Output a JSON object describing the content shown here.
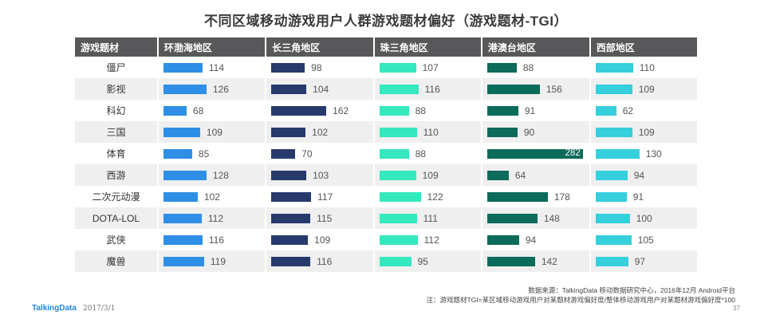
{
  "chart_data": {
    "type": "table",
    "title": "不同区域移动游戏用户人群游戏题材偏好（游戏题材-TGI）",
    "header": [
      "游戏题材",
      "环渤海地区",
      "长三角地区",
      "珠三角地区",
      "港澳台地区",
      "西部地区"
    ],
    "series_colors": [
      "#2f8fe6",
      "#283a6b",
      "#36e8bd",
      "#0c6b5b",
      "#36cfdc"
    ],
    "rows": [
      {
        "category": "僵尸",
        "values": [
          114,
          98,
          107,
          88,
          110
        ]
      },
      {
        "category": "影视",
        "values": [
          126,
          104,
          116,
          156,
          109
        ]
      },
      {
        "category": "科幻",
        "values": [
          68,
          162,
          88,
          91,
          62
        ]
      },
      {
        "category": "三国",
        "values": [
          109,
          102,
          110,
          90,
          109
        ]
      },
      {
        "category": "体育",
        "values": [
          85,
          70,
          88,
          282,
          130
        ]
      },
      {
        "category": "西游",
        "values": [
          128,
          103,
          109,
          64,
          94
        ]
      },
      {
        "category": "二次元动漫",
        "values": [
          102,
          117,
          122,
          178,
          91
        ]
      },
      {
        "category": "DOTA-LOL",
        "values": [
          112,
          115,
          111,
          148,
          100
        ]
      },
      {
        "category": "武侠",
        "values": [
          116,
          109,
          112,
          94,
          105
        ]
      },
      {
        "category": "魔兽",
        "values": [
          119,
          116,
          95,
          142,
          97
        ]
      }
    ],
    "max_value": 282
  },
  "footer": {
    "source": "数据来源：TalkingData 移动数据研究中心，2016年12月 Android平台",
    "note": "注：游戏题材TGI=某区域移动游戏用户对某题材游戏偏好度/整体移动游戏用户对某题材游戏偏好度*100",
    "logo": "TalkingData",
    "date": "2017/3/1",
    "page": "37"
  }
}
